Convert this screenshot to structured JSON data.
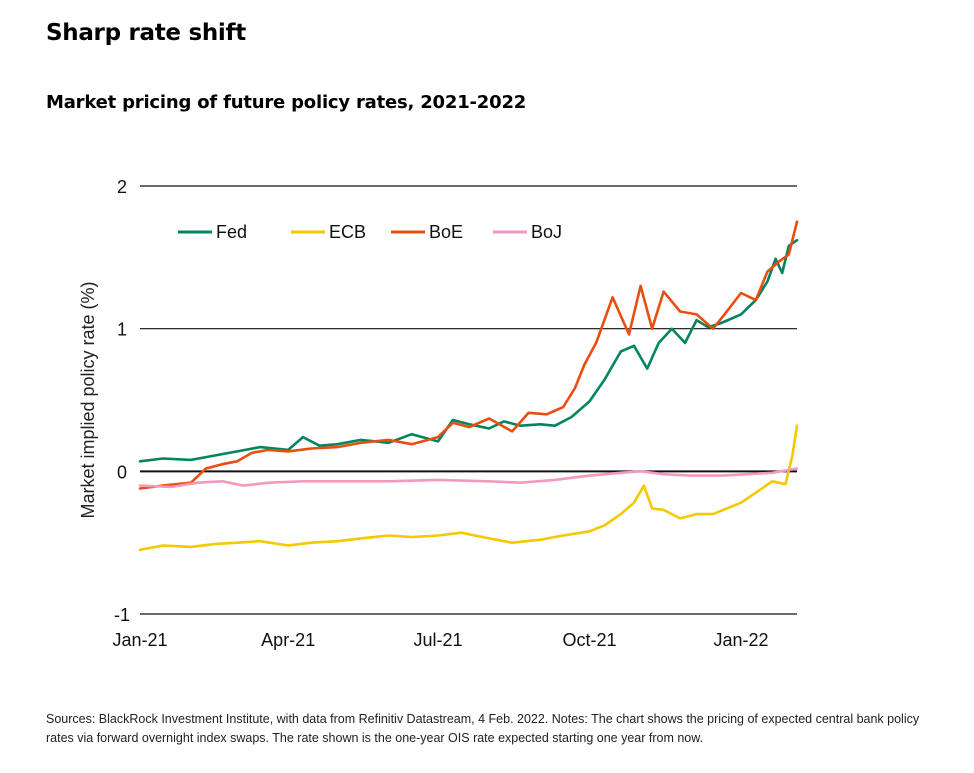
{
  "header": {
    "title": "Sharp rate shift",
    "subtitle": "Market pricing of future policy rates, 2021-2022"
  },
  "footnote": "Sources: BlackRock Investment Institute, with data from Refinitiv Datastream, 4 Feb. 2022. Notes: The chart shows the pricing of expected central bank policy rates via forward overnight index swaps. The rate shown is the one-year OIS rate expected starting one year from now.",
  "chart_data": {
    "type": "line",
    "title": "Market pricing of future policy rates, 2021-2022",
    "xlabel": "",
    "ylabel": "Market implied policy rate (%)",
    "ylim": [
      -1,
      2
    ],
    "yticks": [
      -1,
      0,
      1,
      2
    ],
    "xlim": [
      "2021-01-01",
      "2022-02-04"
    ],
    "xticks": [
      {
        "date": "2021-01-01",
        "label": "Jan-21"
      },
      {
        "date": "2021-04-01",
        "label": "Apr-21"
      },
      {
        "date": "2021-07-01",
        "label": "Jul-21"
      },
      {
        "date": "2021-10-01",
        "label": "Oct-21"
      },
      {
        "date": "2022-01-01",
        "label": "Jan-22"
      }
    ],
    "grid": "horizontal",
    "legend_position": "top-left",
    "series": [
      {
        "name": "Fed",
        "color": "#00855f",
        "points": [
          [
            "2021-01-01",
            0.07
          ],
          [
            "2021-01-15",
            0.09
          ],
          [
            "2021-02-01",
            0.08
          ],
          [
            "2021-02-15",
            0.11
          ],
          [
            "2021-03-01",
            0.14
          ],
          [
            "2021-03-15",
            0.17
          ],
          [
            "2021-04-01",
            0.15
          ],
          [
            "2021-04-10",
            0.24
          ],
          [
            "2021-04-20",
            0.18
          ],
          [
            "2021-05-01",
            0.19
          ],
          [
            "2021-05-15",
            0.22
          ],
          [
            "2021-06-01",
            0.2
          ],
          [
            "2021-06-15",
            0.26
          ],
          [
            "2021-07-01",
            0.21
          ],
          [
            "2021-07-10",
            0.36
          ],
          [
            "2021-07-20",
            0.33
          ],
          [
            "2021-08-01",
            0.3
          ],
          [
            "2021-08-10",
            0.35
          ],
          [
            "2021-08-20",
            0.32
          ],
          [
            "2021-09-01",
            0.33
          ],
          [
            "2021-09-10",
            0.32
          ],
          [
            "2021-09-20",
            0.38
          ],
          [
            "2021-10-01",
            0.49
          ],
          [
            "2021-10-10",
            0.64
          ],
          [
            "2021-10-20",
            0.84
          ],
          [
            "2021-10-28",
            0.88
          ],
          [
            "2021-11-05",
            0.72
          ],
          [
            "2021-11-12",
            0.9
          ],
          [
            "2021-11-20",
            1.0
          ],
          [
            "2021-11-28",
            0.9
          ],
          [
            "2021-12-05",
            1.06
          ],
          [
            "2021-12-12",
            1.01
          ],
          [
            "2021-12-20",
            1.04
          ],
          [
            "2022-01-01",
            1.1
          ],
          [
            "2022-01-10",
            1.2
          ],
          [
            "2022-01-17",
            1.33
          ],
          [
            "2022-01-22",
            1.49
          ],
          [
            "2022-01-26",
            1.39
          ],
          [
            "2022-01-30",
            1.58
          ],
          [
            "2022-02-04",
            1.62
          ]
        ]
      },
      {
        "name": "ECB",
        "color": "#f5c800",
        "points": [
          [
            "2021-01-01",
            -0.55
          ],
          [
            "2021-01-15",
            -0.52
          ],
          [
            "2021-02-01",
            -0.53
          ],
          [
            "2021-02-15",
            -0.51
          ],
          [
            "2021-03-01",
            -0.5
          ],
          [
            "2021-03-15",
            -0.49
          ],
          [
            "2021-04-01",
            -0.52
          ],
          [
            "2021-04-15",
            -0.5
          ],
          [
            "2021-05-01",
            -0.49
          ],
          [
            "2021-05-15",
            -0.47
          ],
          [
            "2021-06-01",
            -0.45
          ],
          [
            "2021-06-15",
            -0.46
          ],
          [
            "2021-07-01",
            -0.45
          ],
          [
            "2021-07-15",
            -0.43
          ],
          [
            "2021-08-01",
            -0.47
          ],
          [
            "2021-08-15",
            -0.5
          ],
          [
            "2021-09-01",
            -0.48
          ],
          [
            "2021-09-15",
            -0.45
          ],
          [
            "2021-10-01",
            -0.42
          ],
          [
            "2021-10-10",
            -0.38
          ],
          [
            "2021-10-20",
            -0.3
          ],
          [
            "2021-10-28",
            -0.22
          ],
          [
            "2021-11-03",
            -0.1
          ],
          [
            "2021-11-08",
            -0.26
          ],
          [
            "2021-11-15",
            -0.27
          ],
          [
            "2021-11-25",
            -0.33
          ],
          [
            "2021-12-05",
            -0.3
          ],
          [
            "2021-12-15",
            -0.3
          ],
          [
            "2022-01-01",
            -0.22
          ],
          [
            "2022-01-10",
            -0.15
          ],
          [
            "2022-01-20",
            -0.07
          ],
          [
            "2022-01-28",
            -0.09
          ],
          [
            "2022-02-01",
            0.1
          ],
          [
            "2022-02-04",
            0.32
          ]
        ]
      },
      {
        "name": "BoE",
        "color": "#e84e0f",
        "points": [
          [
            "2021-01-01",
            -0.12
          ],
          [
            "2021-01-15",
            -0.1
          ],
          [
            "2021-02-01",
            -0.08
          ],
          [
            "2021-02-10",
            0.02
          ],
          [
            "2021-02-20",
            0.05
          ],
          [
            "2021-03-01",
            0.07
          ],
          [
            "2021-03-10",
            0.13
          ],
          [
            "2021-03-20",
            0.15
          ],
          [
            "2021-04-01",
            0.14
          ],
          [
            "2021-04-15",
            0.16
          ],
          [
            "2021-05-01",
            0.17
          ],
          [
            "2021-05-15",
            0.2
          ],
          [
            "2021-06-01",
            0.22
          ],
          [
            "2021-06-15",
            0.19
          ],
          [
            "2021-07-01",
            0.24
          ],
          [
            "2021-07-10",
            0.34
          ],
          [
            "2021-07-20",
            0.31
          ],
          [
            "2021-08-01",
            0.37
          ],
          [
            "2021-08-15",
            0.28
          ],
          [
            "2021-08-25",
            0.41
          ],
          [
            "2021-09-05",
            0.4
          ],
          [
            "2021-09-15",
            0.45
          ],
          [
            "2021-09-22",
            0.58
          ],
          [
            "2021-09-28",
            0.75
          ],
          [
            "2021-10-05",
            0.9
          ],
          [
            "2021-10-15",
            1.22
          ],
          [
            "2021-10-25",
            0.96
          ],
          [
            "2021-11-01",
            1.3
          ],
          [
            "2021-11-08",
            1.0
          ],
          [
            "2021-11-15",
            1.26
          ],
          [
            "2021-11-25",
            1.12
          ],
          [
            "2021-12-05",
            1.1
          ],
          [
            "2021-12-15",
            1.0
          ],
          [
            "2021-12-22",
            1.1
          ],
          [
            "2022-01-01",
            1.25
          ],
          [
            "2022-01-10",
            1.2
          ],
          [
            "2022-01-17",
            1.4
          ],
          [
            "2022-01-24",
            1.47
          ],
          [
            "2022-01-30",
            1.52
          ],
          [
            "2022-02-04",
            1.75
          ]
        ]
      },
      {
        "name": "BoJ",
        "color": "#f09ac0",
        "points": [
          [
            "2021-01-01",
            -0.1
          ],
          [
            "2021-01-20",
            -0.11
          ],
          [
            "2021-02-05",
            -0.08
          ],
          [
            "2021-02-20",
            -0.07
          ],
          [
            "2021-03-05",
            -0.1
          ],
          [
            "2021-03-20",
            -0.08
          ],
          [
            "2021-04-10",
            -0.07
          ],
          [
            "2021-05-01",
            -0.07
          ],
          [
            "2021-06-01",
            -0.07
          ],
          [
            "2021-07-01",
            -0.06
          ],
          [
            "2021-08-01",
            -0.07
          ],
          [
            "2021-08-20",
            -0.08
          ],
          [
            "2021-09-10",
            -0.06
          ],
          [
            "2021-10-01",
            -0.03
          ],
          [
            "2021-10-20",
            -0.01
          ],
          [
            "2021-11-01",
            0.0
          ],
          [
            "2021-11-15",
            -0.02
          ],
          [
            "2021-12-01",
            -0.03
          ],
          [
            "2021-12-20",
            -0.03
          ],
          [
            "2022-01-05",
            -0.02
          ],
          [
            "2022-01-20",
            -0.01
          ],
          [
            "2022-02-04",
            0.02
          ]
        ]
      }
    ]
  }
}
